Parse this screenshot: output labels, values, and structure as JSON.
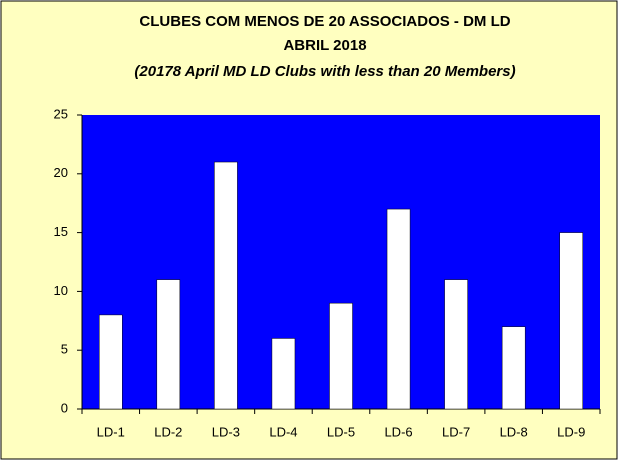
{
  "chart_data": {
    "type": "bar",
    "title_lines": [
      "CLUBES COM MENOS DE 20 ASSOCIADOS - DM LD",
      "ABRIL 2018",
      "(20178 April  MD LD  Clubs with less than 20 Members)"
    ],
    "categories": [
      "LD-1",
      "LD-2",
      "LD-3",
      "LD-4",
      "LD-5",
      "LD-6",
      "LD-7",
      "LD-8",
      "LD-9"
    ],
    "values": [
      8,
      11,
      21,
      6,
      9,
      17,
      11,
      7,
      15
    ],
    "color": "#ffffff",
    "plot_color": "#0000ff",
    "background": "#ffffc0",
    "ylim": [
      0,
      25
    ],
    "yticks": [
      0,
      5,
      10,
      15,
      20,
      25
    ],
    "grid": false
  }
}
